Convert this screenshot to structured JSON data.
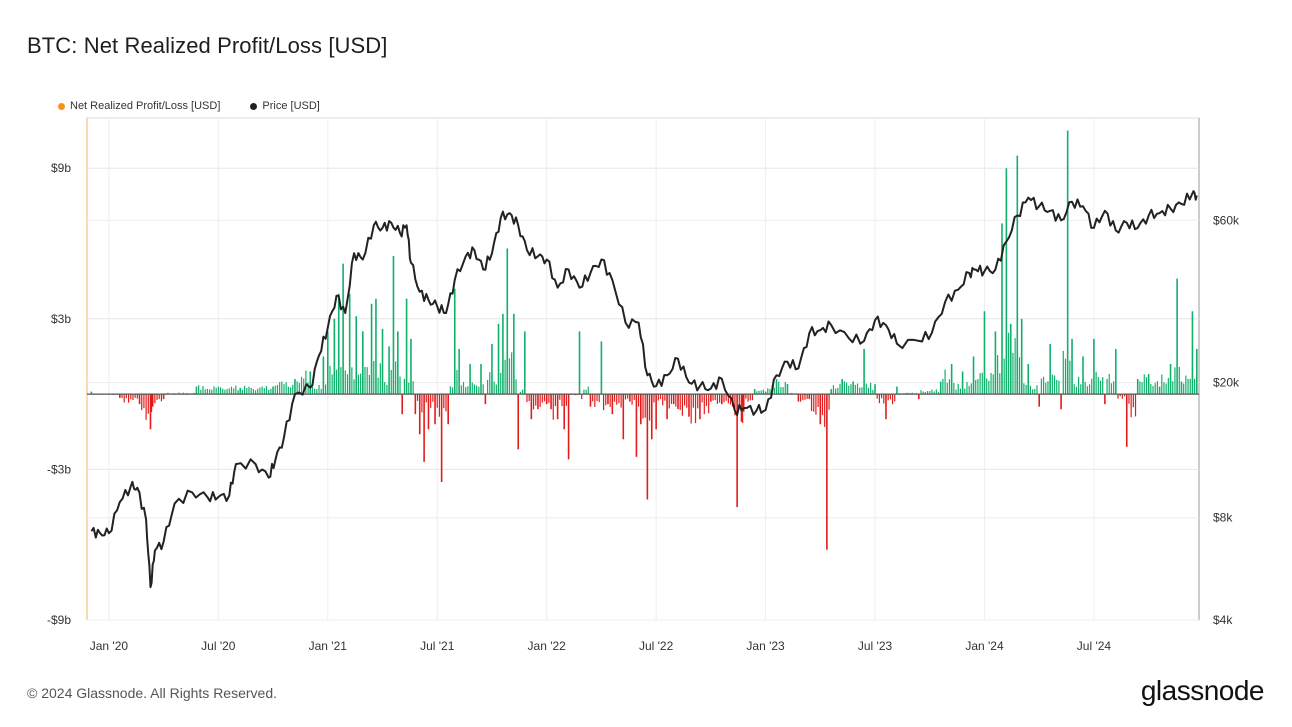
{
  "title": "BTC: Net Realized Profit/Loss [USD]",
  "legend": [
    {
      "label": "Net Realized Profit/Loss [USD]",
      "color": "#f7931a"
    },
    {
      "label": "Price [USD]",
      "color": "#222222"
    }
  ],
  "footer": "© 2024 Glassnode. All Rights Reserved.",
  "brand": "glassnode",
  "colors": {
    "profit": "#10b06b",
    "loss": "#e31b1b",
    "price": "#222222",
    "grid": "#e6e6e6"
  },
  "chart_data": {
    "type": "bar+line",
    "title": "BTC: Net Realized Profit/Loss [USD]",
    "x_range": [
      "2019-12-01",
      "2024-10-31"
    ],
    "x_ticks": [
      {
        "label": "Jan '20",
        "t": 2020.0
      },
      {
        "label": "Jul '20",
        "t": 2020.5
      },
      {
        "label": "Jan '21",
        "t": 2021.0
      },
      {
        "label": "Jul '21",
        "t": 2021.5
      },
      {
        "label": "Jan '22",
        "t": 2022.0
      },
      {
        "label": "Jul '22",
        "t": 2022.5
      },
      {
        "label": "Jan '23",
        "t": 2023.0
      },
      {
        "label": "Jul '23",
        "t": 2023.5
      },
      {
        "label": "Jan '24",
        "t": 2024.0
      },
      {
        "label": "Jul '24",
        "t": 2024.5
      }
    ],
    "left_axis": {
      "label": "Net Realized Profit/Loss [USD]",
      "ylim": [
        -9,
        11
      ],
      "ticks": [
        {
          "label": "$9b",
          "v": 9
        },
        {
          "label": "$3b",
          "v": 3
        },
        {
          "label": "-$3b",
          "v": -3
        },
        {
          "label": "-$9b",
          "v": -9
        }
      ]
    },
    "right_axis": {
      "label": "Price [USD]",
      "scale": "log",
      "ylim": [
        4000,
        120000
      ],
      "ticks": [
        {
          "label": "$60k",
          "v": 60000
        },
        {
          "label": "$20k",
          "v": 20000
        },
        {
          "label": "$8k",
          "v": 8000
        },
        {
          "label": "$4k",
          "v": 4000
        }
      ]
    },
    "series": [
      {
        "name": "Net Realized Profit/Loss [USD] (billions)",
        "axis": "left",
        "points": [
          [
            2019.92,
            0.1
          ],
          [
            2020.05,
            -0.15
          ],
          [
            2020.14,
            -0.4
          ],
          [
            2020.19,
            -1.4
          ],
          [
            2020.2,
            -0.5
          ],
          [
            2020.25,
            -0.2
          ],
          [
            2020.4,
            0.3
          ],
          [
            2020.6,
            0.25
          ],
          [
            2020.75,
            0.3
          ],
          [
            2020.85,
            0.6
          ],
          [
            2020.92,
            0.9
          ],
          [
            2020.98,
            1.5
          ],
          [
            2021.0,
            2.5
          ],
          [
            2021.03,
            3.0
          ],
          [
            2021.05,
            4.0
          ],
          [
            2021.07,
            5.2
          ],
          [
            2021.1,
            4.0
          ],
          [
            2021.13,
            3.1
          ],
          [
            2021.16,
            2.5
          ],
          [
            2021.2,
            3.6
          ],
          [
            2021.22,
            3.8
          ],
          [
            2021.25,
            2.6
          ],
          [
            2021.28,
            1.9
          ],
          [
            2021.3,
            5.5
          ],
          [
            2021.32,
            2.5
          ],
          [
            2021.34,
            -0.8
          ],
          [
            2021.36,
            3.8
          ],
          [
            2021.38,
            2.2
          ],
          [
            2021.4,
            -0.8
          ],
          [
            2021.42,
            -1.6
          ],
          [
            2021.44,
            -2.7
          ],
          [
            2021.46,
            -1.4
          ],
          [
            2021.49,
            -1.2
          ],
          [
            2021.52,
            -3.5
          ],
          [
            2021.55,
            -1.2
          ],
          [
            2021.58,
            4.2
          ],
          [
            2021.6,
            1.8
          ],
          [
            2021.65,
            1.2
          ],
          [
            2021.7,
            1.2
          ],
          [
            2021.72,
            -0.4
          ],
          [
            2021.75,
            2.0
          ],
          [
            2021.78,
            2.8
          ],
          [
            2021.8,
            3.2
          ],
          [
            2021.82,
            5.8
          ],
          [
            2021.85,
            3.2
          ],
          [
            2021.87,
            -2.2
          ],
          [
            2021.9,
            2.5
          ],
          [
            2021.93,
            -1.0
          ],
          [
            2021.96,
            -0.6
          ],
          [
            2022.0,
            -0.4
          ],
          [
            2022.02,
            -0.6
          ],
          [
            2022.05,
            -1.0
          ],
          [
            2022.08,
            -1.4
          ],
          [
            2022.1,
            -2.6
          ],
          [
            2022.15,
            2.5
          ],
          [
            2022.2,
            -0.5
          ],
          [
            2022.25,
            2.1
          ],
          [
            2022.28,
            -0.4
          ],
          [
            2022.3,
            -0.8
          ],
          [
            2022.35,
            -1.8
          ],
          [
            2022.38,
            -0.3
          ],
          [
            2022.41,
            -2.5
          ],
          [
            2022.43,
            -1.2
          ],
          [
            2022.46,
            -4.2
          ],
          [
            2022.48,
            -1.8
          ],
          [
            2022.5,
            -1.4
          ],
          [
            2022.55,
            -1.0
          ],
          [
            2022.58,
            -0.4
          ],
          [
            2022.6,
            -0.6
          ],
          [
            2022.65,
            -0.9
          ],
          [
            2022.7,
            -1.0
          ],
          [
            2022.75,
            -0.3
          ],
          [
            2022.8,
            -0.4
          ],
          [
            2022.85,
            -0.5
          ],
          [
            2022.87,
            -4.5
          ],
          [
            2022.89,
            -1.1
          ],
          [
            2022.9,
            -0.7
          ],
          [
            2022.95,
            0.2
          ],
          [
            2023.0,
            0.1
          ],
          [
            2023.05,
            0.6
          ],
          [
            2023.1,
            0.4
          ],
          [
            2023.15,
            -0.3
          ],
          [
            2023.2,
            -0.2
          ],
          [
            2023.25,
            -1.2
          ],
          [
            2023.28,
            -6.2
          ],
          [
            2023.3,
            0.2
          ],
          [
            2023.35,
            0.6
          ],
          [
            2023.4,
            0.5
          ],
          [
            2023.45,
            1.8
          ],
          [
            2023.5,
            0.4
          ],
          [
            2023.55,
            -1.0
          ],
          [
            2023.6,
            0.3
          ],
          [
            2023.7,
            -0.2
          ],
          [
            2023.8,
            0.5
          ],
          [
            2023.85,
            1.2
          ],
          [
            2023.9,
            0.9
          ],
          [
            2023.95,
            1.5
          ],
          [
            2024.0,
            3.3
          ],
          [
            2024.05,
            2.5
          ],
          [
            2024.08,
            6.8
          ],
          [
            2024.1,
            9.0
          ],
          [
            2024.12,
            2.8
          ],
          [
            2024.15,
            9.5
          ],
          [
            2024.17,
            3.0
          ],
          [
            2024.2,
            1.2
          ],
          [
            2024.25,
            -0.5
          ],
          [
            2024.3,
            2.0
          ],
          [
            2024.35,
            -0.6
          ],
          [
            2024.38,
            10.5
          ],
          [
            2024.4,
            2.2
          ],
          [
            2024.45,
            1.5
          ],
          [
            2024.5,
            2.2
          ],
          [
            2024.55,
            -0.4
          ],
          [
            2024.6,
            1.8
          ],
          [
            2024.65,
            -2.1
          ],
          [
            2024.7,
            0.6
          ],
          [
            2024.75,
            0.8
          ],
          [
            2024.8,
            0.3
          ],
          [
            2024.85,
            1.2
          ],
          [
            2024.88,
            4.6
          ],
          [
            2024.9,
            0.5
          ],
          [
            2024.95,
            3.3
          ],
          [
            2024.97,
            1.8
          ]
        ]
      },
      {
        "name": "Price [USD]",
        "axis": "right",
        "points": [
          [
            2019.92,
            7300
          ],
          [
            2019.96,
            7200
          ],
          [
            2020.0,
            7200
          ],
          [
            2020.05,
            8900
          ],
          [
            2020.1,
            9900
          ],
          [
            2020.13,
            9800
          ],
          [
            2020.17,
            7900
          ],
          [
            2020.19,
            5000
          ],
          [
            2020.21,
            6400
          ],
          [
            2020.25,
            6800
          ],
          [
            2020.3,
            8800
          ],
          [
            2020.38,
            9500
          ],
          [
            2020.45,
            9200
          ],
          [
            2020.5,
            9200
          ],
          [
            2020.55,
            9300
          ],
          [
            2020.58,
            11500
          ],
          [
            2020.67,
            11500
          ],
          [
            2020.73,
            10500
          ],
          [
            2020.76,
            11800
          ],
          [
            2020.8,
            13800
          ],
          [
            2020.85,
            18500
          ],
          [
            2020.92,
            19300
          ],
          [
            2020.96,
            24000
          ],
          [
            2021.0,
            29000
          ],
          [
            2021.04,
            36000
          ],
          [
            2021.08,
            32000
          ],
          [
            2021.12,
            48000
          ],
          [
            2021.16,
            46000
          ],
          [
            2021.21,
            58000
          ],
          [
            2021.25,
            57000
          ],
          [
            2021.29,
            59000
          ],
          [
            2021.33,
            55000
          ],
          [
            2021.36,
            58000
          ],
          [
            2021.38,
            45000
          ],
          [
            2021.42,
            37000
          ],
          [
            2021.46,
            35000
          ],
          [
            2021.5,
            33500
          ],
          [
            2021.54,
            32000
          ],
          [
            2021.58,
            40000
          ],
          [
            2021.63,
            47000
          ],
          [
            2021.67,
            49000
          ],
          [
            2021.71,
            43000
          ],
          [
            2021.75,
            48000
          ],
          [
            2021.79,
            61000
          ],
          [
            2021.83,
            63000
          ],
          [
            2021.87,
            58000
          ],
          [
            2021.91,
            49000
          ],
          [
            2021.96,
            47000
          ],
          [
            2022.0,
            46000
          ],
          [
            2022.05,
            38000
          ],
          [
            2022.1,
            43000
          ],
          [
            2022.15,
            38000
          ],
          [
            2022.2,
            42000
          ],
          [
            2022.25,
            46000
          ],
          [
            2022.3,
            40000
          ],
          [
            2022.36,
            30000
          ],
          [
            2022.42,
            30000
          ],
          [
            2022.46,
            21000
          ],
          [
            2022.5,
            19500
          ],
          [
            2022.55,
            21000
          ],
          [
            2022.6,
            23500
          ],
          [
            2022.65,
            20000
          ],
          [
            2022.7,
            19500
          ],
          [
            2022.75,
            19200
          ],
          [
            2022.8,
            20500
          ],
          [
            2022.86,
            16500
          ],
          [
            2022.9,
            16800
          ],
          [
            2022.96,
            16600
          ],
          [
            2023.0,
            16600
          ],
          [
            2023.05,
            21000
          ],
          [
            2023.1,
            23000
          ],
          [
            2023.15,
            22000
          ],
          [
            2023.2,
            28000
          ],
          [
            2023.25,
            28500
          ],
          [
            2023.3,
            29500
          ],
          [
            2023.38,
            27000
          ],
          [
            2023.45,
            26500
          ],
          [
            2023.5,
            30500
          ],
          [
            2023.55,
            29500
          ],
          [
            2023.6,
            26000
          ],
          [
            2023.7,
            26500
          ],
          [
            2023.76,
            28000
          ],
          [
            2023.82,
            34500
          ],
          [
            2023.88,
            37500
          ],
          [
            2023.93,
            42000
          ],
          [
            2023.96,
            43000
          ],
          [
            2024.0,
            42500
          ],
          [
            2024.05,
            43000
          ],
          [
            2024.1,
            52000
          ],
          [
            2024.15,
            62000
          ],
          [
            2024.2,
            70000
          ],
          [
            2024.25,
            66000
          ],
          [
            2024.3,
            64000
          ],
          [
            2024.35,
            60000
          ],
          [
            2024.4,
            68000
          ],
          [
            2024.45,
            66000
          ],
          [
            2024.5,
            57000
          ],
          [
            2024.55,
            64000
          ],
          [
            2024.6,
            56000
          ],
          [
            2024.65,
            59000
          ],
          [
            2024.7,
            57000
          ],
          [
            2024.75,
            62000
          ],
          [
            2024.8,
            63000
          ],
          [
            2024.85,
            65000
          ],
          [
            2024.9,
            67000
          ],
          [
            2024.95,
            72000
          ],
          [
            2024.97,
            71000
          ]
        ]
      }
    ]
  }
}
